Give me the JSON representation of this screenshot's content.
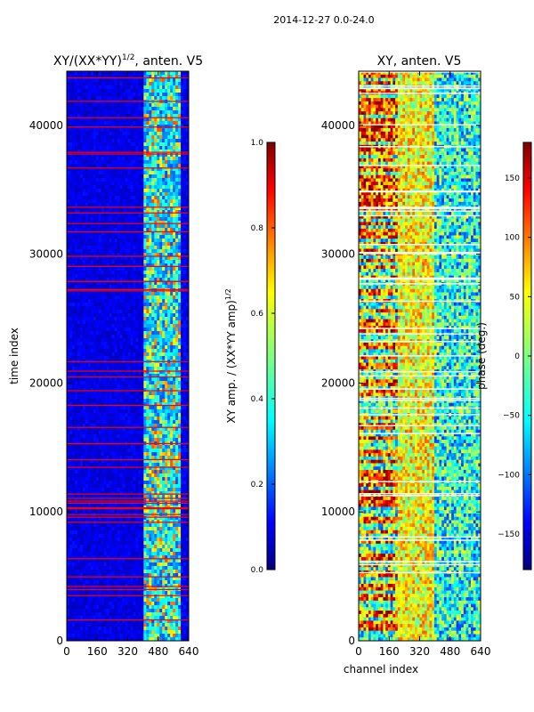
{
  "figure": {
    "suptitle": "2014-12-27 0.0-24.0"
  },
  "chart_data": [
    {
      "type": "heatmap",
      "title_main": "XY/(XX*YY)",
      "title_sup": "1/2",
      "title_rest": ", anten. V5",
      "xlabel": "",
      "ylabel": "time index",
      "xlim": [
        0,
        640
      ],
      "ylim": [
        0,
        44200
      ],
      "xticks": [
        0,
        160,
        320,
        480,
        640
      ],
      "yticks": [
        0,
        10000,
        20000,
        30000,
        40000
      ],
      "colorbar": {
        "label_main": "XY amp. / (XX*YY amp)",
        "label_sup": "1/2",
        "range": [
          0.0,
          1.0
        ],
        "ticks": [
          "0.0",
          "0.2",
          "0.4",
          "0.6",
          "0.8",
          "1.0"
        ],
        "tick_values": [
          0.0,
          0.2,
          0.4,
          0.6,
          0.8,
          1.0
        ]
      }
    },
    {
      "type": "heatmap",
      "title_main": "XY, anten. V5",
      "xlabel": "channel index",
      "ylabel": "",
      "xlim": [
        0,
        640
      ],
      "ylim": [
        0,
        44200
      ],
      "xticks": [
        0,
        160,
        320,
        480,
        640
      ],
      "yticks": [
        0,
        10000,
        20000,
        30000,
        40000
      ],
      "colorbar": {
        "label_main": "phase (deg.)",
        "range": [
          -180,
          180
        ],
        "ticks": [
          "−150",
          "−100",
          "−50",
          "0",
          "50",
          "100",
          "150"
        ],
        "tick_values": [
          -150,
          -100,
          -50,
          0,
          50,
          100,
          150
        ]
      }
    }
  ],
  "colors": {
    "jet_dark_blue": "#00007f",
    "jet_blue": "#0000ff",
    "jet_cyan": "#00ffff",
    "jet_yellow": "#ffff00",
    "jet_red": "#ff0000",
    "jet_dark_red": "#7f0000"
  }
}
